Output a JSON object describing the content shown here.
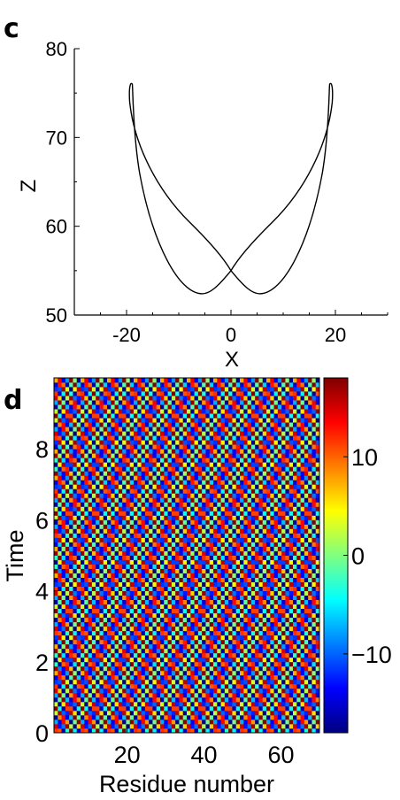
{
  "panels": {
    "c": {
      "label": "c"
    },
    "d": {
      "label": "d"
    }
  },
  "chart_data": [
    {
      "type": "line",
      "panel": "c",
      "xlabel": "X",
      "ylabel": "Z",
      "xlim": [
        -30,
        30
      ],
      "ylim": [
        50,
        80
      ],
      "xticks": [
        -20,
        0,
        20
      ],
      "xtick_labels": [
        "-20",
        "0",
        "20"
      ],
      "yticks": [
        50,
        60,
        70,
        80
      ],
      "ytick_labels": [
        "50",
        "60",
        "70",
        "80"
      ],
      "grid": false,
      "curve": {
        "description_points_xz": [
          [
            0.0,
            55.0
          ],
          [
            -5.5,
            52.5
          ],
          [
            -12.0,
            56.0
          ],
          [
            -17.0,
            66.0
          ],
          [
            -19.0,
            75.8
          ],
          [
            -18.0,
            75.5
          ],
          [
            -10.0,
            66.0
          ],
          [
            0.0,
            55.0
          ],
          [
            5.5,
            52.5
          ],
          [
            12.0,
            56.0
          ],
          [
            17.0,
            66.0
          ],
          [
            19.0,
            75.8
          ],
          [
            18.0,
            75.5
          ],
          [
            10.0,
            66.0
          ],
          [
            0.0,
            55.0
          ]
        ],
        "color": "#000000"
      }
    },
    {
      "type": "heatmap",
      "panel": "d",
      "xlabel": "Residue number",
      "ylabel": "Time",
      "xlim": [
        1,
        70
      ],
      "ylim": [
        0,
        10
      ],
      "xticks": [
        20,
        40,
        60
      ],
      "xtick_labels": [
        "20",
        "40",
        "60"
      ],
      "yticks": [
        0,
        2,
        4,
        6,
        8
      ],
      "ytick_labels": [
        "0",
        "2",
        "4",
        "6",
        "8"
      ],
      "residues": 70,
      "time_steps": 80,
      "pattern": {
        "amplitude": 18,
        "residue_period": 3.5,
        "time_period": 0.55
      },
      "colorbar": {
        "range": [
          -18,
          18
        ],
        "ticks": [
          10,
          0,
          -10
        ],
        "tick_labels": [
          "10",
          "0",
          "−10"
        ],
        "colormap": "jet"
      }
    }
  ]
}
